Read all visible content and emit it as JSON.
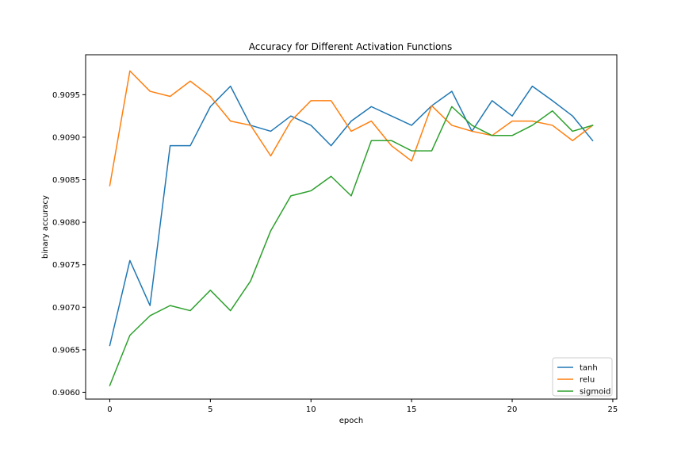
{
  "chart_data": {
    "type": "line",
    "title": "Accuracy for Different Activation Functions",
    "xlabel": "epoch",
    "ylabel": "binary accuracy",
    "xlim": [
      -1.2,
      25.2
    ],
    "ylim": [
      0.90592,
      0.90997
    ],
    "xticks": [
      0,
      5,
      10,
      15,
      20,
      25
    ],
    "xtick_labels": [
      "0",
      "5",
      "10",
      "15",
      "20",
      "25"
    ],
    "yticks": [
      0.906,
      0.9065,
      0.907,
      0.9075,
      0.908,
      0.9085,
      0.909,
      0.9095
    ],
    "ytick_labels": [
      "0.9060",
      "0.9065",
      "0.9070",
      "0.9075",
      "0.9080",
      "0.9085",
      "0.9090",
      "0.9095"
    ],
    "grid": false,
    "legend_position": "lower-right",
    "x": [
      0,
      1,
      2,
      3,
      4,
      5,
      6,
      7,
      8,
      9,
      10,
      11,
      12,
      13,
      14,
      15,
      16,
      17,
      18,
      19,
      20,
      21,
      22,
      23,
      24
    ],
    "series": [
      {
        "name": "tanh",
        "color": "#1f77b4",
        "values": [
          0.90655,
          0.90755,
          0.90702,
          0.9089,
          0.9089,
          0.90936,
          0.9096,
          0.90914,
          0.90907,
          0.90925,
          0.90914,
          0.9089,
          0.90919,
          0.90936,
          0.90925,
          0.90914,
          0.90937,
          0.90954,
          0.90907,
          0.90943,
          0.90925,
          0.9096,
          0.90943,
          0.90925,
          0.90896
        ]
      },
      {
        "name": "relu",
        "color": "#ff7f0e",
        "values": [
          0.90843,
          0.90978,
          0.90954,
          0.90948,
          0.90966,
          0.90948,
          0.90919,
          0.90914,
          0.90878,
          0.90919,
          0.90943,
          0.90943,
          0.90907,
          0.90919,
          0.9089,
          0.90872,
          0.90937,
          0.90914,
          0.90907,
          0.90902,
          0.90919,
          0.90919,
          0.90914,
          0.90896,
          0.90914
        ]
      },
      {
        "name": "sigmoid",
        "color": "#2ca02c",
        "values": [
          0.90608,
          0.90667,
          0.9069,
          0.90702,
          0.90696,
          0.9072,
          0.90696,
          0.90731,
          0.9079,
          0.90831,
          0.90837,
          0.90854,
          0.90831,
          0.90896,
          0.90896,
          0.90884,
          0.90884,
          0.90936,
          0.90914,
          0.90902,
          0.90902,
          0.90914,
          0.90931,
          0.90907,
          0.90914
        ]
      }
    ]
  }
}
